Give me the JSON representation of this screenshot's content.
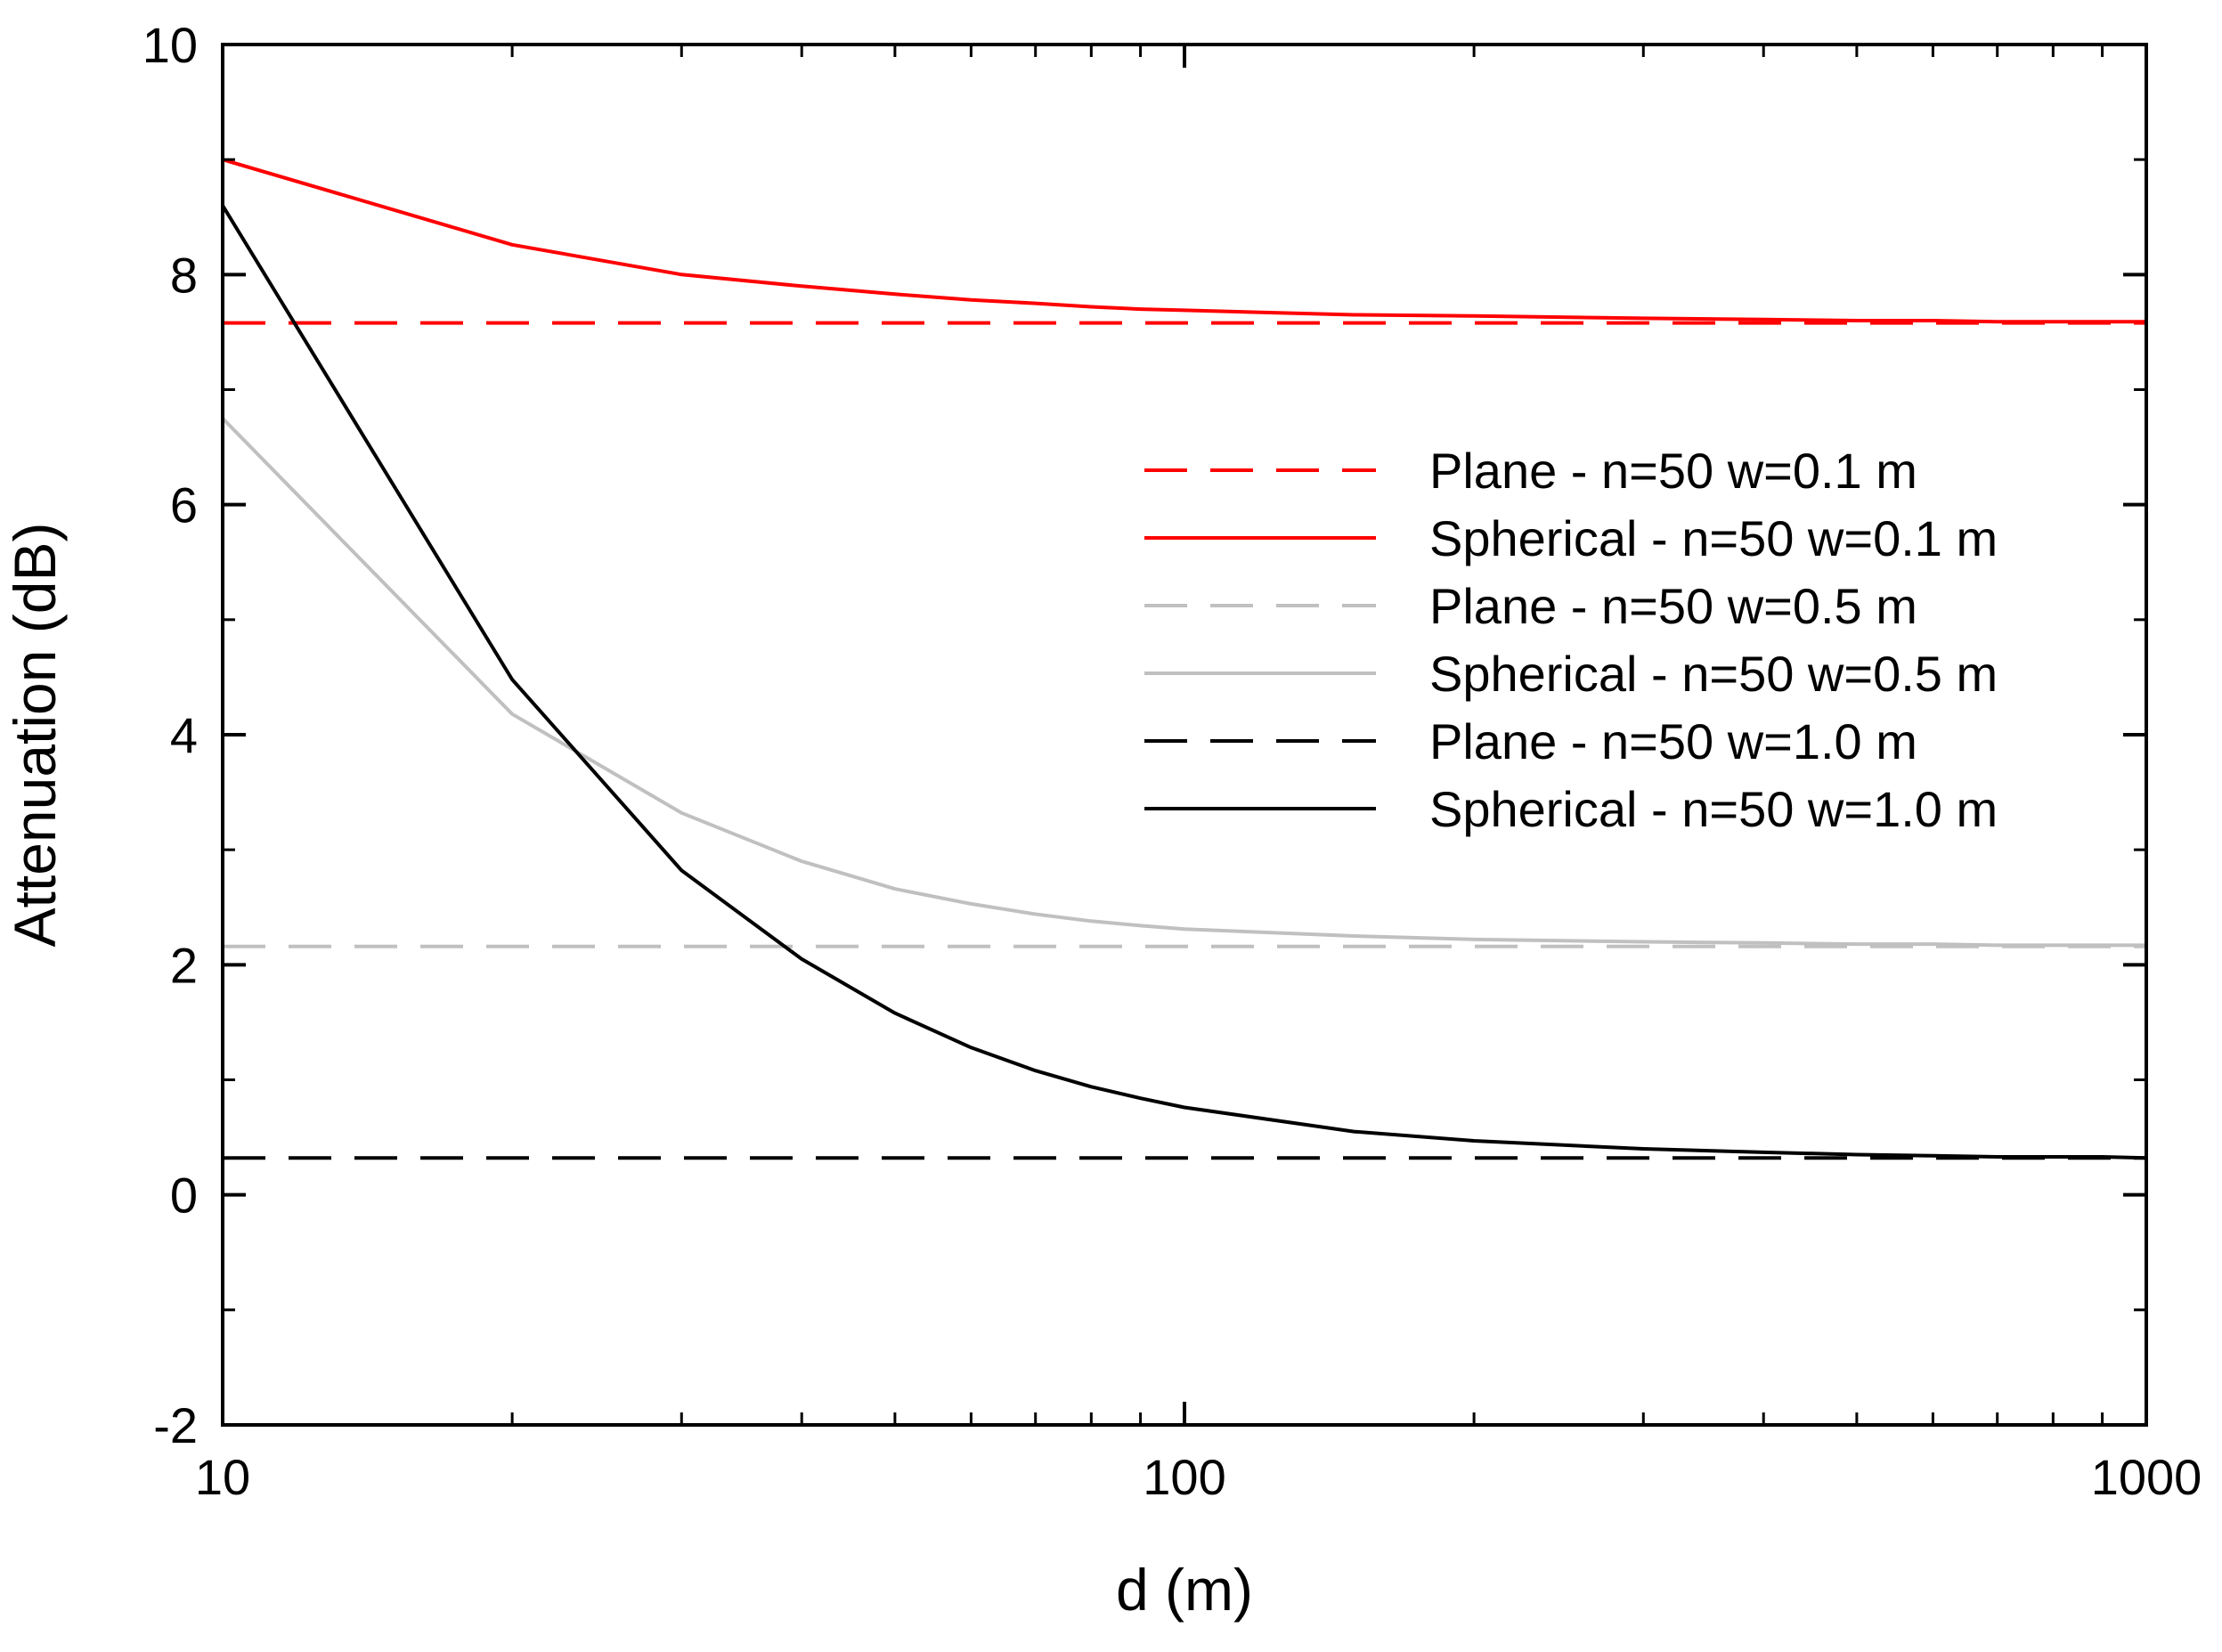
{
  "chart_data": {
    "type": "line",
    "title": "",
    "xlabel": "d (m)",
    "ylabel": "Attenuation (dB)",
    "xscale": "log",
    "xlim": [
      10,
      1000
    ],
    "ylim": [
      -2,
      10
    ],
    "xticks": [
      10,
      100,
      1000
    ],
    "xtick_labels": [
      "10",
      "100",
      "1000"
    ],
    "yticks": [
      -2,
      0,
      2,
      4,
      6,
      8,
      10
    ],
    "ytick_labels": [
      "-2",
      "0",
      "2",
      "4",
      "6",
      "8",
      "10"
    ],
    "grid": false,
    "legend_position": "right",
    "series": [
      {
        "name": "Plane - n=50 w=0.1 m",
        "color": "#ff0000",
        "style": "dashed",
        "x": [
          10,
          1000
        ],
        "y": [
          7.58,
          7.58
        ]
      },
      {
        "name": "Spherical - n=50 w=0.1 m",
        "color": "#ff0000",
        "style": "solid",
        "x": [
          10,
          20,
          30,
          40,
          50,
          60,
          70,
          80,
          90,
          100,
          150,
          200,
          300,
          400,
          500,
          600,
          700,
          800,
          900,
          1000
        ],
        "y": [
          9.0,
          8.26,
          8.0,
          7.9,
          7.83,
          7.78,
          7.75,
          7.72,
          7.7,
          7.69,
          7.65,
          7.64,
          7.62,
          7.61,
          7.6,
          7.6,
          7.59,
          7.59,
          7.59,
          7.59
        ]
      },
      {
        "name": "Plane - n=50 w=0.5 m",
        "color": "#c0c0c0",
        "style": "dashed",
        "x": [
          10,
          1000
        ],
        "y": [
          2.16,
          2.16
        ]
      },
      {
        "name": "Spherical - n=50 w=0.5 m",
        "color": "#c0c0c0",
        "style": "solid",
        "x": [
          10,
          20,
          30,
          40,
          50,
          60,
          70,
          80,
          90,
          100,
          150,
          200,
          300,
          400,
          500,
          600,
          700,
          800,
          900,
          1000
        ],
        "y": [
          6.75,
          4.18,
          3.32,
          2.9,
          2.66,
          2.53,
          2.44,
          2.38,
          2.34,
          2.31,
          2.25,
          2.22,
          2.2,
          2.19,
          2.18,
          2.18,
          2.17,
          2.17,
          2.17,
          2.17
        ]
      },
      {
        "name": "Plane - n=50 w=1.0 m",
        "color": "#000000",
        "style": "dashed",
        "x": [
          10,
          1000
        ],
        "y": [
          0.32,
          0.32
        ]
      },
      {
        "name": "Spherical - n=50 w=1.0 m",
        "color": "#000000",
        "style": "solid",
        "x": [
          10,
          20,
          30,
          40,
          50,
          60,
          70,
          80,
          90,
          100,
          150,
          200,
          300,
          400,
          500,
          600,
          700,
          800,
          900,
          1000
        ],
        "y": [
          8.6,
          4.48,
          2.82,
          2.05,
          1.58,
          1.28,
          1.08,
          0.94,
          0.84,
          0.76,
          0.55,
          0.47,
          0.4,
          0.37,
          0.35,
          0.34,
          0.33,
          0.33,
          0.33,
          0.32
        ]
      }
    ]
  }
}
